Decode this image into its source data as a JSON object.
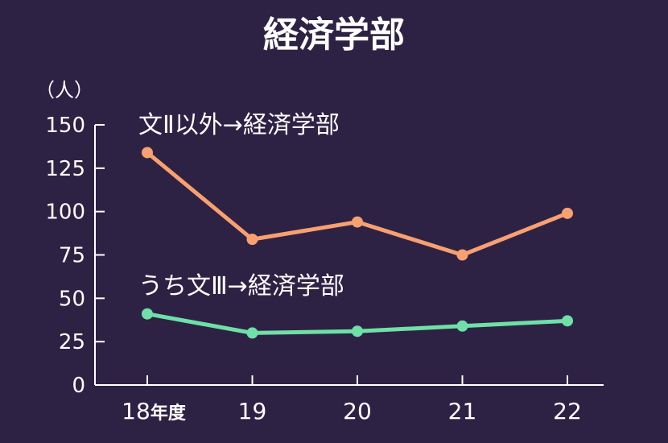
{
  "chart_data": {
    "type": "line",
    "title": "経済学部",
    "ylabel": "（人）",
    "ylim": [
      0,
      150
    ],
    "yticks": [
      0,
      25,
      50,
      75,
      100,
      125,
      150
    ],
    "categories": [
      "18",
      "19",
      "20",
      "21",
      "22"
    ],
    "first_category_suffix": "年度",
    "series": [
      {
        "name": "文Ⅱ以外→経済学部",
        "color": "#f8a070",
        "values": [
          134,
          84,
          94,
          75,
          99
        ]
      },
      {
        "name": "うち文Ⅲ→経済学部",
        "color": "#6ee0a8",
        "values": [
          41,
          30,
          31,
          34,
          37
        ]
      }
    ],
    "grid": false,
    "legend": "inline labels above each line"
  }
}
